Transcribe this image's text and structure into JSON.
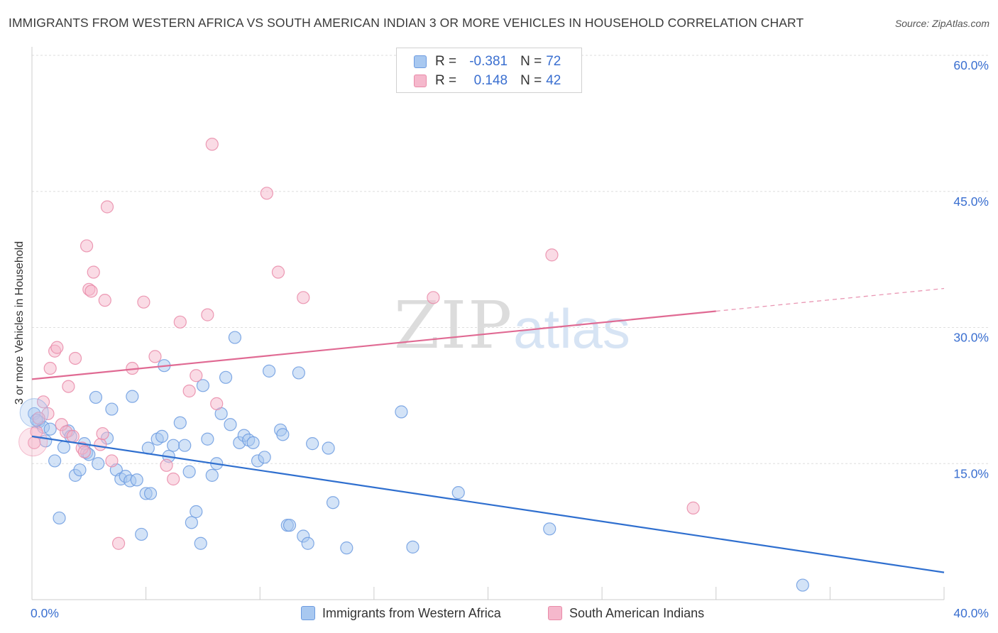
{
  "header": {
    "title": "IMMIGRANTS FROM WESTERN AFRICA VS SOUTH AMERICAN INDIAN 3 OR MORE VEHICLES IN HOUSEHOLD CORRELATION CHART",
    "source": "Source: ZipAtlas.com"
  },
  "watermark": {
    "zip": "ZIP",
    "atlas": "atlas"
  },
  "legend": {
    "r_label": "R =",
    "n_label": "N =",
    "series1": {
      "r": "-0.381",
      "n": "72"
    },
    "series2": {
      "r": "0.148",
      "n": "42"
    }
  },
  "colors": {
    "blue_fill": "#a8c8f0",
    "blue_stroke": "#6c9be0",
    "blue_line": "#2f6fcf",
    "pink_fill": "#f5b8cc",
    "pink_stroke": "#e98aa8",
    "pink_line": "#e06a93",
    "axis_text": "#3a6fd0"
  },
  "chart_data": {
    "type": "scatter",
    "ylabel": "3 or more Vehicles in Household",
    "xlim": [
      0,
      40
    ],
    "ylim": [
      0,
      60
    ],
    "x_tick_labels": [
      {
        "value": 0,
        "label": "0.0%"
      },
      {
        "value": 40,
        "label": "40.0%"
      }
    ],
    "y_tick_labels": [
      {
        "value": 15,
        "label": "15.0%"
      },
      {
        "value": 30,
        "label": "30.0%"
      },
      {
        "value": 45,
        "label": "45.0%"
      },
      {
        "value": 60,
        "label": "60.0%"
      }
    ],
    "grid": true,
    "legend_position": "top-center",
    "series": [
      {
        "name": "Immigrants from Western Africa",
        "color": "#a8c8f0",
        "trend": {
          "x0": 0,
          "y0": 18.0,
          "x1": 40,
          "y1": 3.0,
          "solid_until": 40
        },
        "points": [
          [
            0.1,
            20.5
          ],
          [
            0.3,
            19.6
          ],
          [
            0.5,
            19.0
          ],
          [
            0.6,
            17.5
          ],
          [
            0.8,
            18.8
          ],
          [
            1.0,
            15.3
          ],
          [
            1.2,
            9.0
          ],
          [
            1.4,
            16.8
          ],
          [
            1.6,
            18.6
          ],
          [
            1.7,
            18.0
          ],
          [
            1.9,
            13.7
          ],
          [
            2.1,
            14.3
          ],
          [
            2.3,
            17.2
          ],
          [
            2.4,
            16.2
          ],
          [
            2.5,
            16.0
          ],
          [
            2.8,
            22.3
          ],
          [
            2.9,
            15.0
          ],
          [
            3.3,
            17.8
          ],
          [
            3.5,
            21.0
          ],
          [
            3.7,
            14.3
          ],
          [
            3.9,
            13.3
          ],
          [
            4.1,
            13.6
          ],
          [
            4.3,
            13.1
          ],
          [
            4.4,
            22.4
          ],
          [
            4.6,
            13.2
          ],
          [
            4.8,
            7.2
          ],
          [
            5.0,
            11.7
          ],
          [
            5.1,
            16.7
          ],
          [
            5.2,
            11.7
          ],
          [
            5.5,
            17.7
          ],
          [
            5.7,
            18.0
          ],
          [
            5.8,
            25.8
          ],
          [
            6.0,
            15.8
          ],
          [
            6.2,
            17.0
          ],
          [
            6.5,
            19.5
          ],
          [
            6.7,
            17.0
          ],
          [
            6.9,
            14.1
          ],
          [
            7.0,
            8.5
          ],
          [
            7.2,
            9.7
          ],
          [
            7.4,
            6.2
          ],
          [
            7.5,
            23.6
          ],
          [
            7.7,
            17.7
          ],
          [
            7.9,
            13.7
          ],
          [
            8.1,
            15.0
          ],
          [
            8.3,
            20.5
          ],
          [
            8.5,
            24.5
          ],
          [
            8.7,
            19.3
          ],
          [
            8.9,
            28.9
          ],
          [
            9.1,
            17.3
          ],
          [
            9.3,
            18.1
          ],
          [
            9.5,
            17.6
          ],
          [
            9.7,
            17.3
          ],
          [
            9.9,
            15.3
          ],
          [
            10.2,
            15.7
          ],
          [
            10.4,
            25.2
          ],
          [
            10.9,
            18.7
          ],
          [
            11.0,
            18.2
          ],
          [
            11.2,
            8.2
          ],
          [
            11.3,
            8.2
          ],
          [
            11.7,
            25.0
          ],
          [
            11.9,
            7.0
          ],
          [
            12.1,
            6.2
          ],
          [
            12.3,
            17.2
          ],
          [
            13.0,
            16.7
          ],
          [
            13.2,
            10.7
          ],
          [
            13.8,
            5.7
          ],
          [
            16.2,
            20.7
          ],
          [
            16.7,
            5.8
          ],
          [
            18.7,
            11.8
          ],
          [
            22.7,
            7.8
          ],
          [
            33.8,
            1.6
          ],
          [
            0.2,
            19.8
          ]
        ]
      },
      {
        "name": "South American Indians",
        "color": "#f5b8cc",
        "trend": {
          "x0": 0,
          "y0": 24.3,
          "x1": 40,
          "y1": 34.3,
          "solid_until": 30
        },
        "points": [
          [
            0.1,
            17.3
          ],
          [
            0.2,
            18.5
          ],
          [
            0.5,
            21.8
          ],
          [
            0.7,
            20.5
          ],
          [
            0.8,
            25.5
          ],
          [
            1.0,
            27.4
          ],
          [
            1.1,
            27.8
          ],
          [
            1.3,
            19.3
          ],
          [
            1.5,
            18.5
          ],
          [
            1.6,
            23.5
          ],
          [
            1.8,
            18.0
          ],
          [
            1.9,
            26.6
          ],
          [
            2.2,
            16.7
          ],
          [
            2.3,
            16.3
          ],
          [
            2.4,
            39.0
          ],
          [
            2.5,
            34.2
          ],
          [
            2.6,
            34.0
          ],
          [
            2.7,
            36.1
          ],
          [
            3.0,
            17.1
          ],
          [
            3.1,
            18.3
          ],
          [
            3.2,
            33.0
          ],
          [
            3.3,
            43.3
          ],
          [
            3.5,
            15.3
          ],
          [
            3.8,
            6.2
          ],
          [
            4.4,
            25.5
          ],
          [
            4.9,
            32.8
          ],
          [
            5.4,
            26.8
          ],
          [
            5.9,
            14.8
          ],
          [
            6.2,
            13.3
          ],
          [
            6.5,
            30.6
          ],
          [
            6.9,
            23.0
          ],
          [
            7.2,
            24.7
          ],
          [
            7.7,
            31.4
          ],
          [
            7.9,
            50.2
          ],
          [
            8.1,
            21.6
          ],
          [
            10.3,
            44.8
          ],
          [
            10.8,
            36.1
          ],
          [
            11.9,
            33.3
          ],
          [
            17.6,
            33.3
          ],
          [
            22.8,
            38.0
          ],
          [
            29.0,
            10.1
          ],
          [
            0.3,
            20.0
          ]
        ]
      }
    ]
  }
}
